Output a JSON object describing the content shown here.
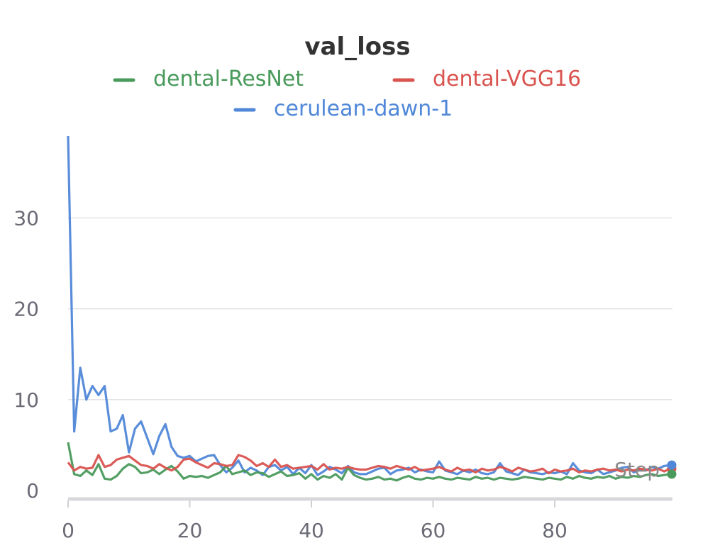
{
  "chart_data": {
    "type": "line",
    "title": "val_loss",
    "xlabel": "Step",
    "ylabel": "",
    "xlim": [
      0,
      99
    ],
    "ylim": [
      0,
      39
    ],
    "x_ticks": [
      0,
      20,
      40,
      60,
      80
    ],
    "y_ticks": [
      0,
      10,
      20,
      30
    ],
    "grid": true,
    "legend_position": "top",
    "series": [
      {
        "name": "dental-ResNet",
        "color": "#4a9a5c",
        "values": [
          5.3,
          1.8,
          1.6,
          2.2,
          1.7,
          2.9,
          1.3,
          1.2,
          1.6,
          2.4,
          2.9,
          2.6,
          1.9,
          2.0,
          2.3,
          1.8,
          2.3,
          2.7,
          2.1,
          1.3,
          1.6,
          1.5,
          1.6,
          1.4,
          1.7,
          2.0,
          2.7,
          1.8,
          2.0,
          2.2,
          1.7,
          2.0,
          1.9,
          1.5,
          1.8,
          2.1,
          1.6,
          1.7,
          1.9,
          1.3,
          1.8,
          1.2,
          1.6,
          1.4,
          1.8,
          1.2,
          2.5,
          1.7,
          1.4,
          1.2,
          1.3,
          1.5,
          1.2,
          1.3,
          1.1,
          1.4,
          1.6,
          1.3,
          1.2,
          1.4,
          1.3,
          1.5,
          1.3,
          1.2,
          1.4,
          1.3,
          1.2,
          1.5,
          1.3,
          1.4,
          1.2,
          1.4,
          1.3,
          1.2,
          1.3,
          1.5,
          1.4,
          1.3,
          1.2,
          1.4,
          1.3,
          1.2,
          1.5,
          1.3,
          1.6,
          1.4,
          1.3,
          1.5,
          1.4,
          1.6,
          1.3,
          1.5,
          1.4,
          1.6,
          1.5,
          1.7,
          1.8,
          1.6,
          1.7,
          1.8
        ]
      },
      {
        "name": "dental-VGG16",
        "color": "#d9534f",
        "values": [
          3.1,
          2.2,
          2.6,
          2.4,
          2.5,
          3.9,
          2.6,
          2.8,
          3.4,
          3.6,
          3.8,
          3.3,
          2.8,
          2.7,
          2.4,
          2.9,
          2.5,
          2.2,
          2.6,
          3.4,
          3.5,
          3.1,
          2.8,
          2.5,
          3.0,
          2.9,
          2.7,
          2.8,
          3.9,
          3.7,
          3.3,
          2.7,
          3.0,
          2.6,
          3.4,
          2.6,
          2.8,
          2.4,
          2.5,
          2.6,
          2.7,
          2.3,
          2.9,
          2.3,
          2.5,
          2.4,
          2.6,
          2.4,
          2.3,
          2.3,
          2.5,
          2.7,
          2.6,
          2.4,
          2.7,
          2.5,
          2.3,
          2.6,
          2.2,
          2.3,
          2.4,
          2.6,
          2.3,
          2.1,
          2.5,
          2.2,
          2.3,
          2.0,
          2.4,
          2.2,
          2.3,
          2.6,
          2.4,
          2.1,
          2.5,
          2.3,
          2.1,
          2.2,
          2.4,
          1.9,
          2.3,
          2.1,
          2.2,
          2.4,
          2.0,
          2.2,
          2.1,
          2.3,
          2.4,
          2.2,
          2.3,
          2.1,
          2.3,
          2.2,
          2.4,
          2.3,
          2.2,
          2.4,
          2.1,
          2.4
        ]
      },
      {
        "name": "cerulean-dawn-1",
        "color": "#5087d8",
        "values": [
          39.0,
          6.5,
          13.5,
          10.0,
          11.5,
          10.5,
          11.5,
          6.5,
          6.8,
          8.3,
          4.2,
          6.8,
          7.6,
          5.8,
          4.0,
          6.0,
          7.3,
          4.8,
          3.8,
          3.6,
          3.8,
          3.2,
          3.5,
          3.8,
          3.9,
          2.8,
          2.0,
          2.5,
          3.3,
          2.0,
          2.5,
          2.2,
          1.7,
          2.6,
          2.8,
          2.2,
          2.6,
          1.8,
          2.5,
          1.9,
          2.8,
          1.7,
          2.1,
          2.6,
          2.3,
          1.9,
          2.7,
          2.0,
          1.8,
          1.8,
          2.1,
          2.4,
          2.5,
          1.8,
          2.2,
          2.3,
          2.5,
          2.0,
          2.3,
          2.1,
          2.0,
          3.2,
          2.2,
          2.0,
          1.8,
          2.2,
          2.0,
          2.3,
          1.9,
          1.8,
          2.0,
          3.0,
          2.1,
          1.9,
          1.7,
          2.3,
          2.0,
          1.9,
          1.8,
          2.0,
          1.9,
          2.1,
          1.8,
          3.0,
          2.2,
          2.0,
          1.9,
          2.3,
          1.8,
          2.0,
          2.2,
          2.5,
          2.6,
          2.0,
          2.3,
          2.2,
          2.6,
          2.4,
          2.7,
          2.8
        ]
      }
    ]
  }
}
